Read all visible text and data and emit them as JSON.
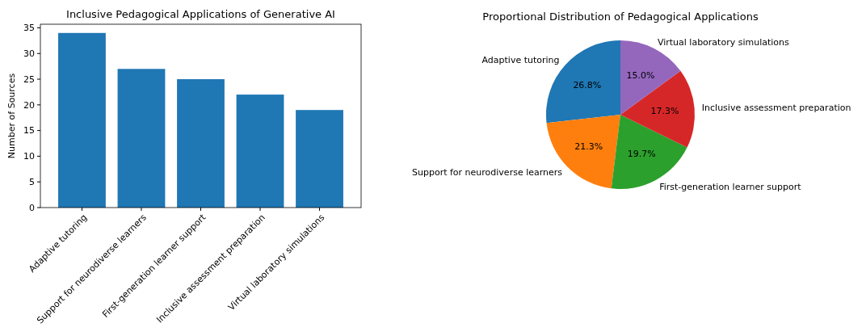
{
  "chart_data": [
    {
      "type": "bar",
      "title": "Inclusive Pedagogical Applications of Generative AI",
      "ylabel": "Number of Sources",
      "categories": [
        "Adaptive tutoring",
        "Support for neurodiverse learners",
        "First-generation learner support",
        "Inclusive assessment preparation",
        "Virtual laboratory simulations"
      ],
      "values": [
        34,
        27,
        25,
        22,
        19
      ],
      "color": "#1f77b4",
      "ylim": [
        0,
        35.7
      ],
      "yticks": [
        0,
        5,
        10,
        15,
        20,
        25,
        30,
        35
      ],
      "grid": false
    },
    {
      "type": "pie",
      "title": "Proportional Distribution of Pedagogical Applications",
      "categories": [
        "Adaptive tutoring",
        "Support for neurodiverse learners",
        "First-generation learner support",
        "Inclusive assessment preparation",
        "Virtual laboratory simulations"
      ],
      "values": [
        26.8,
        21.3,
        19.7,
        17.3,
        15.0
      ],
      "value_labels": [
        "26.8%",
        "21.3%",
        "19.7%",
        "17.3%",
        "15.0%"
      ],
      "colors": [
        "#1f77b4",
        "#ff7f0e",
        "#2ca02c",
        "#d62728",
        "#9467bd"
      ]
    }
  ]
}
